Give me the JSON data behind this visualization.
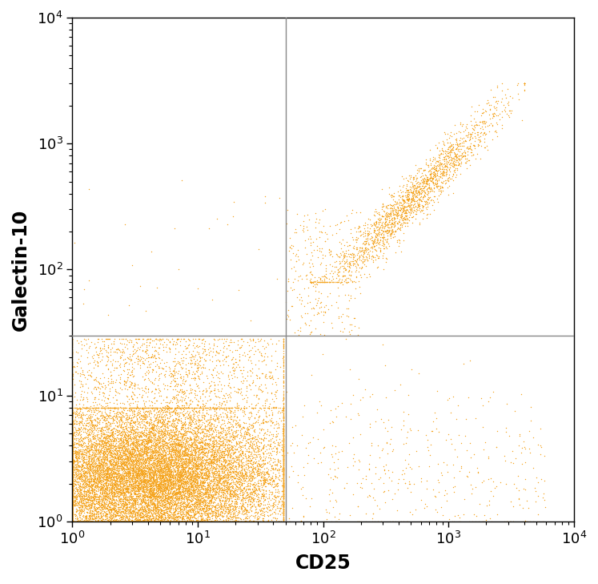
{
  "dot_color": "#F5A623",
  "xlabel": "CD25",
  "ylabel": "Galectin-10",
  "xlim": [
    1,
    10000
  ],
  "ylim": [
    1,
    10000
  ],
  "xline": 50,
  "yline": 30,
  "line_color": "#888888",
  "line_width": 1.0,
  "dot_size": 1.0,
  "dot_alpha": 1.0,
  "xlabel_fontsize": 17,
  "ylabel_fontsize": 17,
  "tick_fontsize": 13,
  "background_color": "#ffffff",
  "seed": 42
}
